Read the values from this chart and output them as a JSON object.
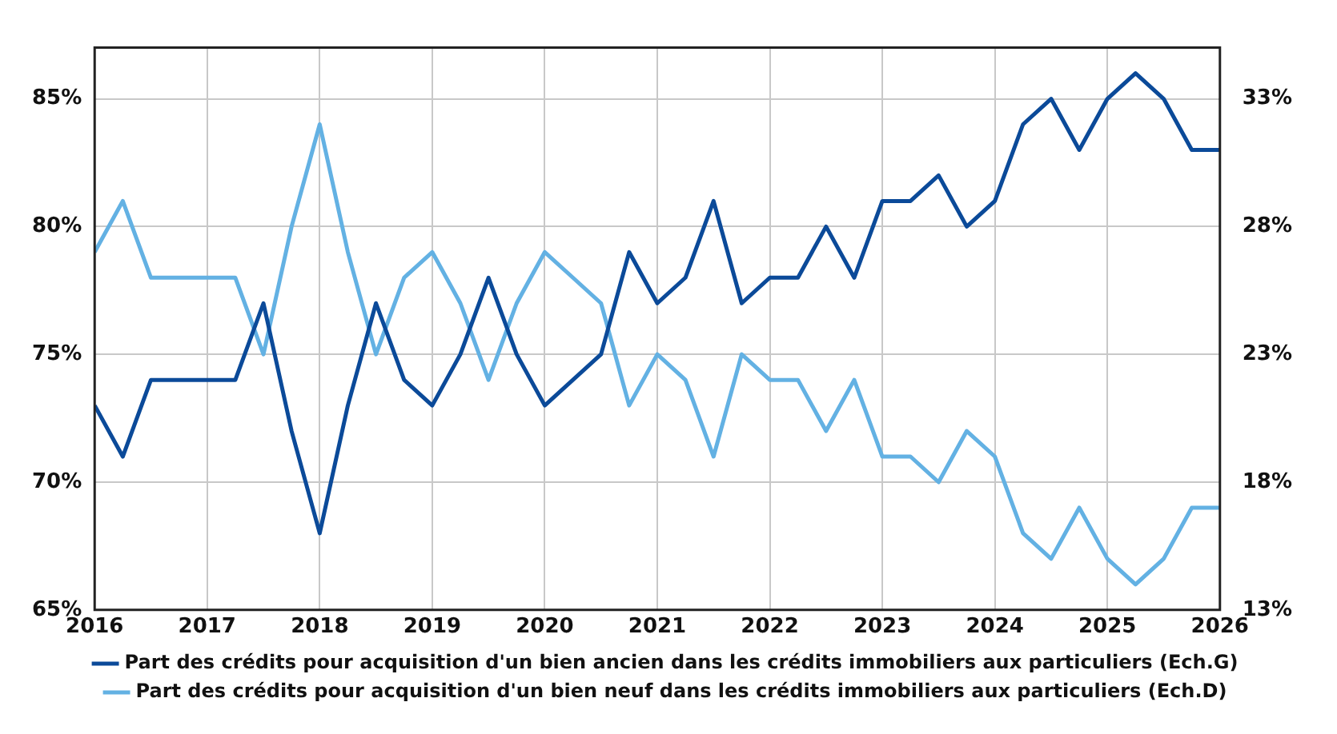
{
  "chart_data": {
    "type": "line",
    "x": [
      2016,
      2016.25,
      2016.5,
      2016.75,
      2017,
      2017.25,
      2017.5,
      2017.75,
      2018,
      2018.25,
      2018.5,
      2018.75,
      2019,
      2019.25,
      2019.5,
      2019.75,
      2020,
      2020.25,
      2020.5,
      2020.75,
      2021,
      2021.25,
      2021.5,
      2021.75,
      2022,
      2022.25,
      2022.5,
      2022.75,
      2023,
      2023.25,
      2023.5,
      2023.75,
      2024,
      2024.25,
      2024.5,
      2024.75,
      2025,
      2025.25,
      2025.5,
      2025.75,
      2026
    ],
    "series": [
      {
        "name": "Part des crédits pour acquisition d'un bien ancien dans les crédits immobiliers aux particuliers (Ech.G)",
        "color": "#0b4a99",
        "axis": "y",
        "values": [
          73,
          71,
          74,
          74,
          74,
          74,
          77,
          72,
          68,
          73,
          77,
          74,
          73,
          75,
          78,
          75,
          73,
          74,
          75,
          79,
          77,
          78,
          81,
          77,
          78,
          78,
          80,
          78,
          81,
          81,
          82,
          80,
          81,
          84,
          85,
          83,
          85,
          86,
          85,
          83,
          83
        ]
      },
      {
        "name": "Part des crédits pour acquisition d'un bien neuf dans les crédits immobiliers aux particuliers (Ech.D)",
        "color": "#63b1e3",
        "axis": "y2",
        "values": [
          27,
          29,
          26,
          26,
          26,
          26,
          23,
          28,
          32,
          27,
          23,
          26,
          27,
          25,
          22,
          25,
          27,
          26,
          25,
          21,
          23,
          22,
          19,
          23,
          22,
          22,
          20,
          22,
          19,
          19,
          18,
          20,
          19,
          16,
          15,
          17,
          15,
          14,
          15,
          17,
          17
        ]
      }
    ],
    "xlim": [
      2016,
      2026
    ],
    "xticks": [
      2016,
      2017,
      2018,
      2019,
      2020,
      2021,
      2022,
      2023,
      2024,
      2025,
      2026
    ],
    "ylim": [
      65,
      87
    ],
    "yticks": [
      {
        "value": 65,
        "label": "65%"
      },
      {
        "value": 70,
        "label": "70%"
      },
      {
        "value": 75,
        "label": "75%"
      },
      {
        "value": 80,
        "label": "80%"
      },
      {
        "value": 85,
        "label": "85%"
      }
    ],
    "y2lim": [
      13,
      35
    ],
    "y2ticks": [
      {
        "value": 13,
        "label": "13%"
      },
      {
        "value": 18,
        "label": "18%"
      },
      {
        "value": 23,
        "label": "23%"
      },
      {
        "value": 28,
        "label": "28%"
      },
      {
        "value": 33,
        "label": "33%"
      }
    ],
    "grid": true,
    "legend": "bottom",
    "marker": "none",
    "line_style": "solid"
  }
}
